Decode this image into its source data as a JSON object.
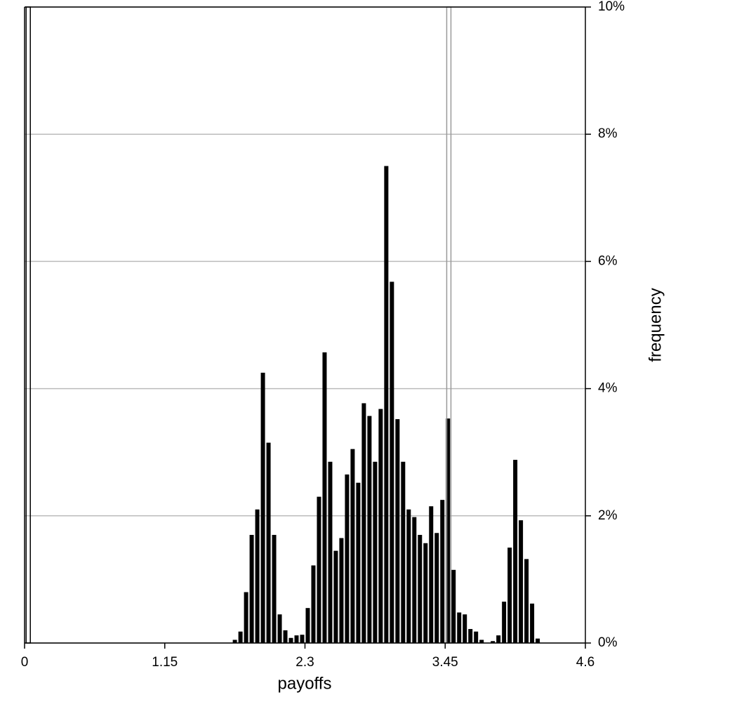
{
  "chart_data": {
    "type": "histogram",
    "x_label": "payoffs",
    "y_label": "frequency",
    "bins": [
      1.702,
      1.748,
      1.794,
      1.84,
      1.886,
      1.932,
      1.978,
      2.024,
      2.07,
      2.116,
      2.162,
      2.208,
      2.254,
      2.3,
      2.346,
      2.392,
      2.438,
      2.484,
      2.53,
      2.576,
      2.622,
      2.668,
      2.714,
      2.76,
      2.806,
      2.852,
      2.898,
      2.944,
      2.99,
      3.036,
      3.082,
      3.128,
      3.174,
      3.22,
      3.266,
      3.312,
      3.358,
      3.404,
      3.45,
      3.496,
      3.542,
      3.588,
      3.634,
      3.68,
      3.726,
      3.772,
      3.818,
      3.864,
      3.91,
      3.956,
      4.002,
      4.048,
      4.094,
      4.14,
      4.186,
      4.232
    ],
    "values": [
      0.05,
      0.18,
      0.8,
      1.7,
      2.1,
      4.25,
      3.15,
      1.7,
      0.45,
      0.2,
      0.08,
      0.12,
      0.13,
      0.55,
      1.22,
      2.3,
      4.57,
      2.85,
      1.45,
      1.65,
      2.65,
      3.05,
      2.52,
      3.77,
      3.57,
      2.85,
      3.68,
      7.5,
      5.68,
      3.52,
      2.85,
      2.1,
      1.98,
      1.7,
      1.57,
      2.15,
      1.73,
      2.25,
      3.53,
      1.15,
      0.48,
      0.45,
      0.22,
      0.18,
      0.05,
      0,
      0.03,
      0.12,
      0.65,
      1.5,
      2.88,
      1.93,
      1.32,
      0.62,
      0.07
    ],
    "color": "#000000",
    "reference_lines": [
      0.03,
      3.48
    ],
    "reference_colors": [
      "#000000",
      "#999999"
    ],
    "xlim": [
      0,
      4.6
    ],
    "xticks": [
      0,
      1.15,
      2.3,
      3.45,
      4.6
    ],
    "ylim": [
      0,
      10
    ],
    "yticks": [
      {
        "value": 0,
        "label": "0%"
      },
      {
        "value": 2,
        "label": "2%"
      },
      {
        "value": 4,
        "label": "4%"
      },
      {
        "value": 6,
        "label": "6%"
      },
      {
        "value": 8,
        "label": "8%"
      },
      {
        "value": 10,
        "label": "10%"
      }
    ],
    "grid": true
  }
}
